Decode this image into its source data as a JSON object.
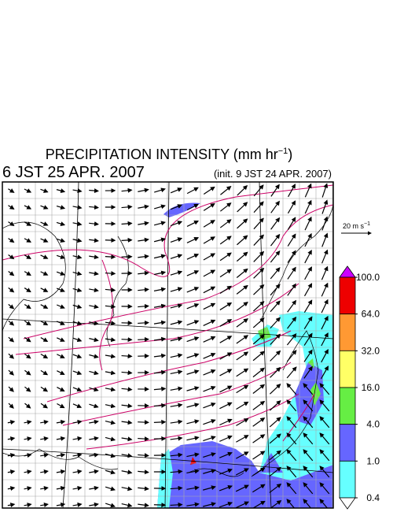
{
  "header": {
    "title": {
      "main": "PRECIPITATION INTENSITY (mm hr",
      "sup": "−1",
      "end": ")"
    },
    "valid_time": "6 JST 25 APR. 2007",
    "init_time": "(init. 9 JST 24 APR. 2007)"
  },
  "wind_scale": {
    "main": "20 m s",
    "sup": "−1"
  },
  "colorbar": {
    "levels": [
      {
        "value": 100,
        "label": "100.0"
      },
      {
        "value": 64,
        "label": "64.0"
      },
      {
        "value": 32,
        "label": "32.0"
      },
      {
        "value": 16,
        "label": "16.0"
      },
      {
        "value": 4,
        "label": "4.0"
      },
      {
        "value": 1,
        "label": "1.0"
      },
      {
        "value": 0.4,
        "label": "0.4"
      }
    ],
    "colors": [
      "#cc00ff",
      "#ee0000",
      "#ff9933",
      "#ffff66",
      "#66ee44",
      "#6666ff",
      "#66ffff",
      "#ffffff"
    ]
  }
}
